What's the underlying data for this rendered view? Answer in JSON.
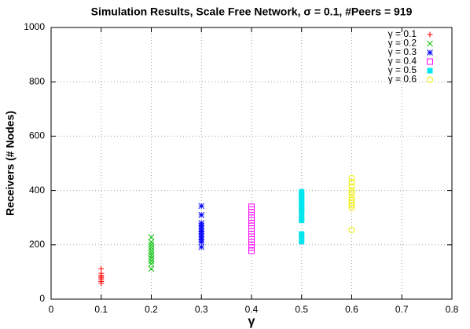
{
  "chart_data": {
    "type": "scatter",
    "title": "Simulation Results, Scale Free Network, σ = 0.1, #Peers = 919",
    "x_label": "γ",
    "y_label": "Receivers (# Nodes)",
    "xlim": [
      0,
      0.8
    ],
    "xticks": [
      0,
      0.1,
      0.2,
      0.3,
      0.4,
      0.5,
      0.6,
      0.7,
      0.8
    ],
    "ylim": [
      0,
      1000
    ],
    "yticks": [
      0,
      200,
      400,
      600,
      800,
      1000
    ],
    "grid": true,
    "legend": "top-right",
    "series": [
      {
        "name": "γ = 0.1",
        "color": "#ff0000",
        "marker": "plus",
        "x": [
          0.1,
          0.1,
          0.1,
          0.1,
          0.1,
          0.1,
          0.1,
          0.1
        ],
        "values": [
          112,
          95,
          88,
          82,
          78,
          72,
          65,
          58
        ]
      },
      {
        "name": "γ = 0.2",
        "color": "#00c000",
        "marker": "cross",
        "x": [
          0.2,
          0.2,
          0.2,
          0.2,
          0.2,
          0.2,
          0.2,
          0.2,
          0.2,
          0.2,
          0.2
        ],
        "values": [
          228,
          210,
          200,
          190,
          180,
          170,
          160,
          150,
          140,
          130,
          112
        ]
      },
      {
        "name": "γ = 0.3",
        "color": "#0000ff",
        "marker": "star",
        "x": [
          0.3,
          0.3,
          0.3,
          0.3,
          0.3,
          0.3,
          0.3,
          0.3,
          0.3,
          0.3,
          0.3
        ],
        "values": [
          343,
          310,
          280,
          270,
          260,
          250,
          240,
          230,
          220,
          210,
          192
        ]
      },
      {
        "name": "γ = 0.4",
        "color": "#ff00ff",
        "marker": "square-open",
        "x": [
          0.4,
          0.4,
          0.4,
          0.4,
          0.4,
          0.4,
          0.4,
          0.4,
          0.4,
          0.4,
          0.4,
          0.4,
          0.4,
          0.4,
          0.4,
          0.4
        ],
        "values": [
          340,
          330,
          320,
          300,
          290,
          280,
          270,
          260,
          250,
          240,
          230,
          220,
          210,
          200,
          190,
          178
        ]
      },
      {
        "name": "γ = 0.5",
        "color": "#00e5ee",
        "marker": "square-filled",
        "x": [
          0.5,
          0.5,
          0.5,
          0.5,
          0.5,
          0.5,
          0.5,
          0.5,
          0.5,
          0.5,
          0.5,
          0.5,
          0.5
        ],
        "values": [
          395,
          385,
          375,
          365,
          350,
          340,
          330,
          320,
          300,
          290,
          240,
          232,
          212
        ]
      },
      {
        "name": "γ = 0.6",
        "color": "#eeee00",
        "marker": "circle-open",
        "x": [
          0.6,
          0.6,
          0.6,
          0.6,
          0.6,
          0.6,
          0.6,
          0.6,
          0.6,
          0.6,
          0.6
        ],
        "values": [
          445,
          430,
          415,
          400,
          390,
          375,
          365,
          355,
          345,
          335,
          255
        ]
      }
    ]
  }
}
